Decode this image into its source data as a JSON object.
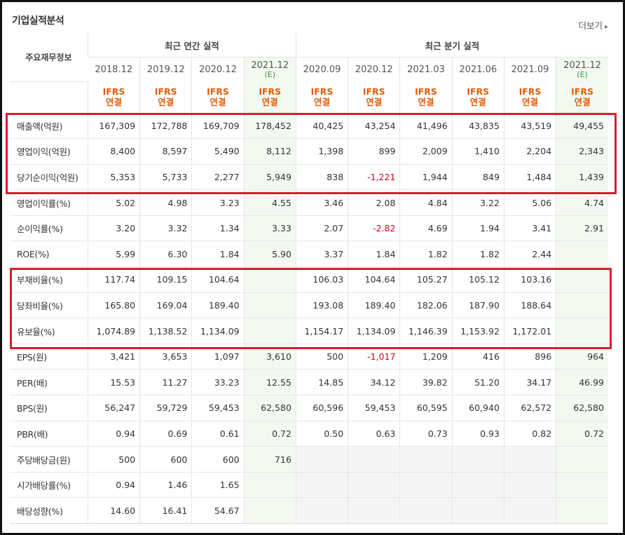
{
  "title": "기업실적분석",
  "more_link": "더보기",
  "header": {
    "side_label": "주요재무정보",
    "group_annual": "최근 연간 실적",
    "group_quarter": "최근 분기 실적",
    "periods": [
      {
        "label": "2018.12",
        "est": ""
      },
      {
        "label": "2019.12",
        "est": ""
      },
      {
        "label": "2020.12",
        "est": ""
      },
      {
        "label": "2021.12",
        "est": "(E)"
      },
      {
        "label": "2020.09",
        "est": ""
      },
      {
        "label": "2020.12",
        "est": ""
      },
      {
        "label": "2021.03",
        "est": ""
      },
      {
        "label": "2021.06",
        "est": ""
      },
      {
        "label": "2021.09",
        "est": ""
      },
      {
        "label": "2021.12",
        "est": "(E)"
      }
    ],
    "standard_line1": "IFRS",
    "standard_line2": "연결"
  },
  "rows": [
    {
      "label": "매출액(억원)",
      "values": [
        "167,309",
        "172,788",
        "169,709",
        "178,452",
        "40,425",
        "43,254",
        "41,496",
        "43,835",
        "43,519",
        "49,455"
      ]
    },
    {
      "label": "영업이익(억원)",
      "values": [
        "8,400",
        "8,597",
        "5,490",
        "8,112",
        "1,398",
        "899",
        "2,009",
        "1,410",
        "2,204",
        "2,343"
      ]
    },
    {
      "label": "당기순이익(억원)",
      "values": [
        "5,353",
        "5,733",
        "2,277",
        "5,949",
        "838",
        "-1,221",
        "1,944",
        "849",
        "1,484",
        "1,439"
      ]
    },
    {
      "label": "영업이익률(%)",
      "values": [
        "5.02",
        "4.98",
        "3.23",
        "4.55",
        "3.46",
        "2.08",
        "4.84",
        "3.22",
        "5.06",
        "4.74"
      ]
    },
    {
      "label": "순이익률(%)",
      "values": [
        "3.20",
        "3.32",
        "1.34",
        "3.33",
        "2.07",
        "-2.82",
        "4.69",
        "1.94",
        "3.41",
        "2.91"
      ]
    },
    {
      "label": "ROE(%)",
      "values": [
        "5.99",
        "6.30",
        "1.84",
        "5.90",
        "3.37",
        "1.84",
        "1.82",
        "1.82",
        "2.44",
        ""
      ]
    },
    {
      "label": "부채비율(%)",
      "values": [
        "117.74",
        "109.15",
        "104.64",
        "",
        "106.03",
        "104.64",
        "105.27",
        "105.12",
        "103.16",
        ""
      ]
    },
    {
      "label": "당좌비율(%)",
      "values": [
        "165.80",
        "169.04",
        "189.40",
        "",
        "193.08",
        "189.40",
        "182.06",
        "187.90",
        "188.64",
        ""
      ]
    },
    {
      "label": "유보율(%)",
      "values": [
        "1,074.89",
        "1,138.52",
        "1,134.09",
        "",
        "1,154.17",
        "1,134.09",
        "1,146.39",
        "1,153.92",
        "1,172.01",
        ""
      ]
    },
    {
      "label": "EPS(원)",
      "values": [
        "3,421",
        "3,653",
        "1,097",
        "3,610",
        "500",
        "-1,017",
        "1,209",
        "416",
        "896",
        "964"
      ]
    },
    {
      "label": "PER(배)",
      "values": [
        "15.53",
        "11.27",
        "33.23",
        "12.55",
        "14.85",
        "34.12",
        "39.82",
        "51.20",
        "34.17",
        "46.99"
      ]
    },
    {
      "label": "BPS(원)",
      "values": [
        "56,247",
        "59,729",
        "59,453",
        "62,580",
        "60,596",
        "59,453",
        "60,595",
        "60,940",
        "62,572",
        "62,580"
      ]
    },
    {
      "label": "PBR(배)",
      "values": [
        "0.94",
        "0.69",
        "0.61",
        "0.72",
        "0.50",
        "0.63",
        "0.73",
        "0.93",
        "0.82",
        "0.72"
      ]
    },
    {
      "label": "주당배당금(원)",
      "values": [
        "500",
        "600",
        "600",
        "716",
        "",
        "",
        "",
        "",
        "",
        ""
      ]
    },
    {
      "label": "시가배당률(%)",
      "values": [
        "0.94",
        "1.46",
        "1.65",
        "",
        "",
        "",
        "",
        "",
        "",
        ""
      ]
    },
    {
      "label": "배당성향(%)",
      "values": [
        "14.60",
        "16.41",
        "54.67",
        "",
        "",
        "",
        "",
        "",
        "",
        ""
      ]
    }
  ],
  "colors": {
    "estimate_bg": "#f3f9f1",
    "negative": "#d0021b",
    "highlight_border": "#d81d2c",
    "standard_text": "#e55b06",
    "estimate_text": "#3a9b3a"
  }
}
